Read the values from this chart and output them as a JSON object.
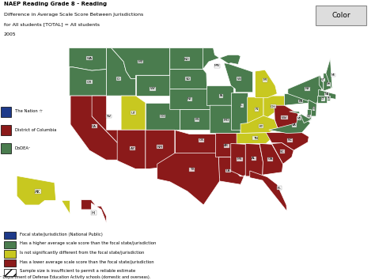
{
  "title_line1": "NAEP Reading Grade 8 - Reading",
  "title_line2": "Difference in Average Scale Score Between Jurisdictions",
  "title_line3": "for All students [TOTAL] = All students",
  "title_line4": "2005",
  "color_button": "Color",
  "colors": {
    "focal": "#1E3A8A",
    "higher": "#4A7C4E",
    "not_significant": "#C8C820",
    "lower": "#8B1A1A",
    "insufficient": "#D8D8D8",
    "background": "#FFFFFF",
    "border": "#FFFFFF"
  },
  "state_colors": {
    "AL": "lower",
    "AK": "not_significant",
    "AZ": "lower",
    "AR": "lower",
    "CA": "lower",
    "CO": "higher",
    "CT": "higher",
    "DE": "higher",
    "FL": "lower",
    "GA": "lower",
    "HI": "lower",
    "ID": "higher",
    "IL": "higher",
    "IN": "not_significant",
    "IA": "higher",
    "KS": "higher",
    "KY": "not_significant",
    "LA": "lower",
    "ME": "higher",
    "MD": "higher",
    "MA": "higher",
    "MI": "not_significant",
    "MN": "higher",
    "MS": "lower",
    "MO": "higher",
    "MT": "higher",
    "NE": "higher",
    "NV": "lower",
    "NH": "higher",
    "NJ": "higher",
    "NM": "lower",
    "NY": "higher",
    "NC": "lower",
    "ND": "higher",
    "OH": "not_significant",
    "OK": "lower",
    "OR": "higher",
    "PA": "higher",
    "RI": "higher",
    "SC": "lower",
    "SD": "higher",
    "TN": "not_significant",
    "TX": "lower",
    "UT": "not_significant",
    "VT": "higher",
    "VA": "higher",
    "WA": "higher",
    "WV": "lower",
    "WI": "higher",
    "WY": "higher"
  },
  "legend_items": [
    {
      "color": "#1E3A8A",
      "label": "Focal state/jurisdiction (National Public)",
      "hatch": null
    },
    {
      "color": "#4A7C4E",
      "label": "Has a higher average scale score than the focal state/jurisdiction",
      "hatch": null
    },
    {
      "color": "#C8C820",
      "label": "Is not significantly different from the focal state/jurisdiction",
      "hatch": null
    },
    {
      "color": "#8B1A1A",
      "label": "Has a lower average scale score than the focal state/jurisdiction",
      "hatch": null
    },
    {
      "color": "#FFFFFF",
      "label": "Sample size is insufficient to permit a reliable estimate",
      "hatch": "///"
    }
  ],
  "side_legend": [
    {
      "color": "#1E3A8A",
      "label": "The Nation ☆"
    },
    {
      "color": "#8B1A1A",
      "label": "District of Columbia"
    },
    {
      "color": "#4A7C4E",
      "label": "DoDEA¹"
    }
  ],
  "footnote": "¹ Department of Defense Education Activity schools (domestic and overseas)."
}
